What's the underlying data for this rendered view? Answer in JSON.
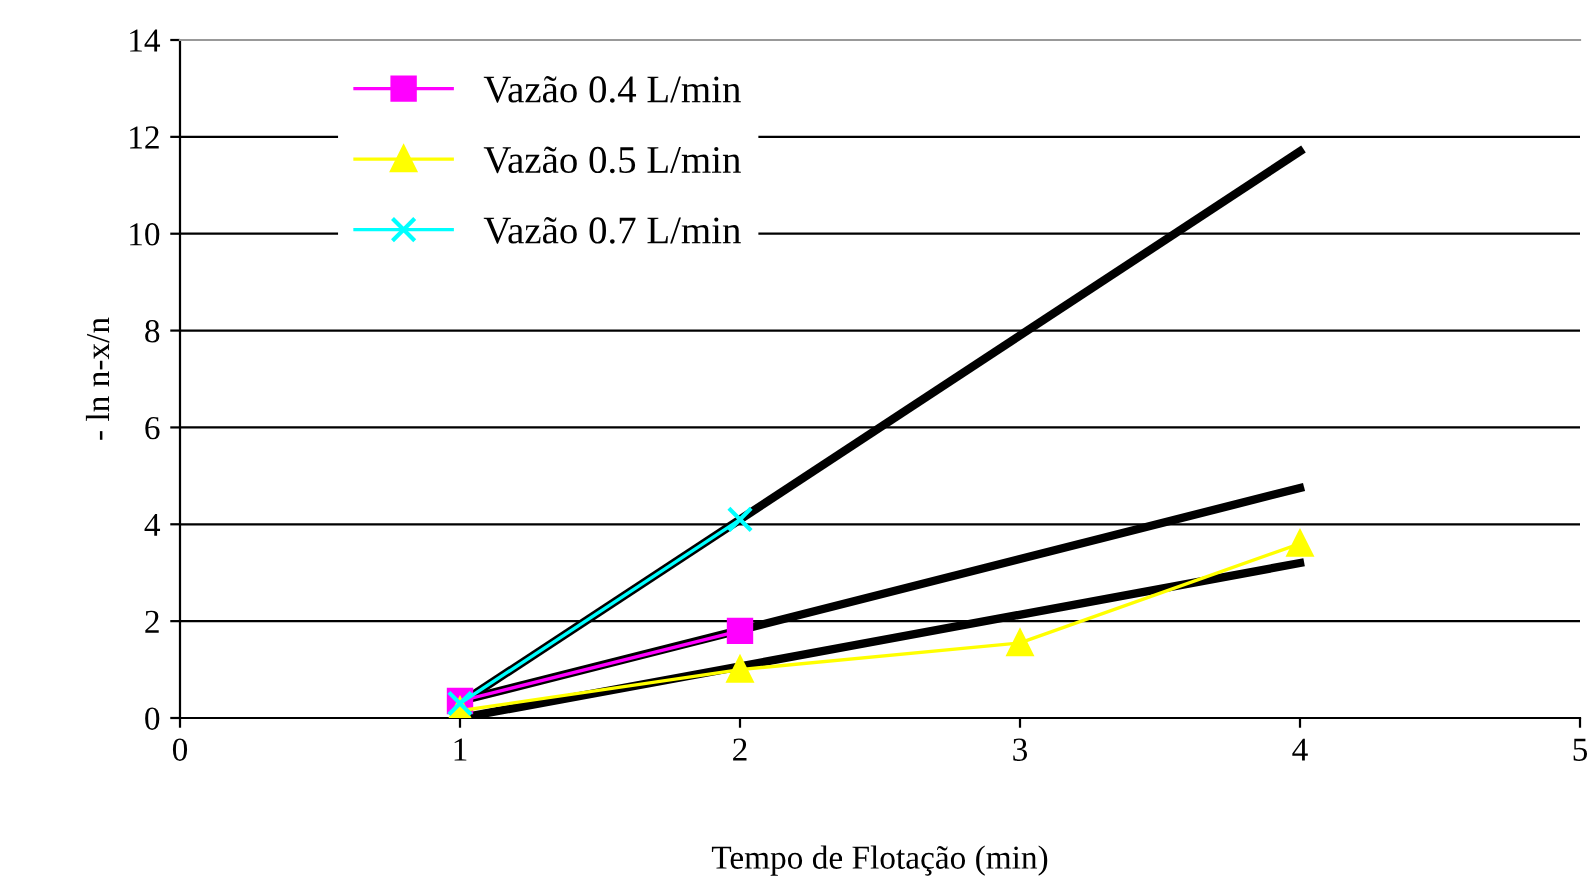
{
  "chart_data": {
    "type": "line",
    "xlabel": "Tempo de Flotação (min)",
    "ylabel": "- ln n-x/n",
    "xlim": [
      0,
      5
    ],
    "xticks": [
      0,
      1,
      2,
      3,
      4,
      5
    ],
    "ylim": [
      0,
      14
    ],
    "yticks": [
      0,
      2,
      4,
      6,
      8,
      10,
      12,
      14
    ],
    "grid": "y",
    "legend": "top left",
    "series": [
      {
        "name": "Vazão 0.4 L/min",
        "color": "#ff00ff",
        "marker": "square",
        "x": [
          1,
          2
        ],
        "values": [
          0.35,
          1.8
        ]
      },
      {
        "name": "Vazão 0.5 L/min",
        "color": "#ffff00",
        "marker": "triangle",
        "x": [
          1,
          2,
          3,
          4
        ],
        "values": [
          0.15,
          1.0,
          1.55,
          3.6
        ]
      },
      {
        "name": "Vazão 0.7 L/min",
        "color": "#00ffff",
        "marker": "cross",
        "x": [
          1,
          2
        ],
        "values": [
          0.3,
          4.1
        ]
      },
      {
        "color": "#000000",
        "marker": "none",
        "x": [
          1,
          4
        ],
        "values": [
          0.3,
          11.7
        ]
      },
      {
        "color": "#000000",
        "marker": "none",
        "x": [
          1,
          4
        ],
        "values": [
          0.35,
          4.75
        ]
      },
      {
        "color": "#000000",
        "marker": "none",
        "x": [
          1,
          4
        ],
        "values": [
          0.0,
          3.2
        ]
      }
    ]
  }
}
